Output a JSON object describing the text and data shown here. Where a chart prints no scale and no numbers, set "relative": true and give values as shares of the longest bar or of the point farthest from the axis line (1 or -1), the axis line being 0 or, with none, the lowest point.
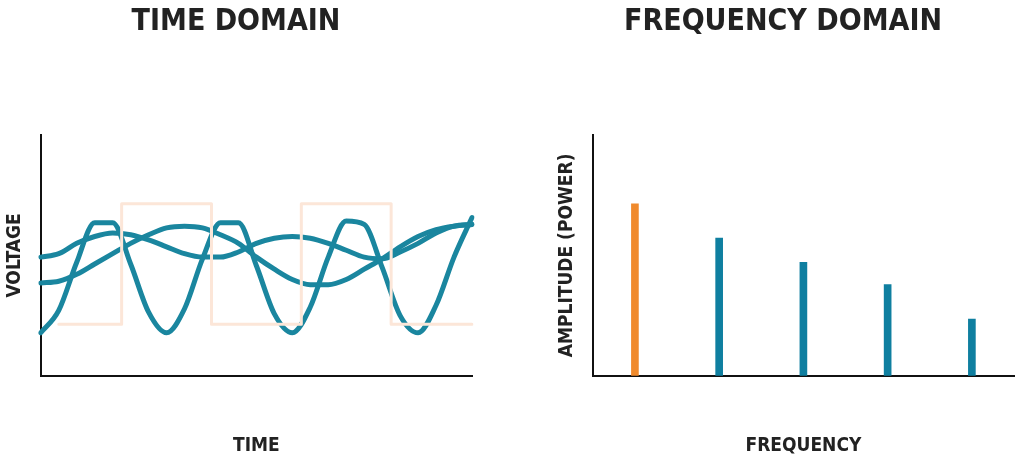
{
  "chart_data": [
    {
      "type": "line",
      "title": "TIME DOMAIN",
      "xlabel": "TIME",
      "ylabel": "VOLTAGE",
      "relative": true,
      "legend": false,
      "grid": false,
      "marker": "none",
      "categories": [
        null,
        null,
        null,
        null,
        null,
        null,
        null,
        null,
        null,
        null,
        null,
        null,
        null,
        null,
        null,
        null,
        null,
        null,
        null,
        null,
        null,
        null,
        null,
        null,
        null
      ],
      "series": [
        {
          "type": "step",
          "color": "#fce6d8",
          "values": [
            null,
            0.3,
            0.3,
            0.3,
            0.3,
            1,
            1,
            1,
            1,
            1,
            0.3,
            0.3,
            0.3,
            0.3,
            0.3,
            1,
            1,
            1,
            1,
            1,
            0.3,
            0.3,
            0.3,
            0.3,
            0.3
          ]
        },
        {
          "color": "#1a869f",
          "values": [
            0.25,
            0.38,
            0.66,
            0.89,
            0.89,
            0.65,
            0.37,
            0.25,
            0.39,
            0.68,
            0.89,
            0.89,
            0.64,
            0.36,
            0.25,
            0.4,
            0.69,
            0.9,
            0.88,
            0.63,
            0.35,
            0.25,
            0.41,
            0.69,
            0.92
          ]
        },
        {
          "color": "#1a869f",
          "values": [
            0.69,
            0.71,
            0.77,
            0.81,
            0.83,
            0.82,
            0.79,
            0.75,
            0.71,
            0.69,
            0.69,
            0.72,
            0.77,
            0.8,
            0.81,
            0.8,
            0.77,
            0.73,
            0.69,
            0.68,
            0.72,
            0.77,
            0.83,
            0.87,
            0.88
          ]
        },
        {
          "color": "#1a869f",
          "values": [
            0.54,
            0.55,
            0.59,
            0.65,
            0.71,
            0.77,
            0.82,
            0.86,
            0.87,
            0.86,
            0.82,
            0.77,
            0.69,
            0.62,
            0.56,
            0.53,
            0.53,
            0.56,
            0.62,
            0.68,
            0.75,
            0.81,
            0.85,
            0.87,
            0.88
          ]
        }
      ]
    },
    {
      "type": "bar",
      "title": "FREQUENCY DOMAIN",
      "xlabel": "FREQUENCY",
      "ylabel": "AMPLITUDE (POWER)",
      "relative": true,
      "legend": false,
      "grid": false,
      "categories": [
        null,
        null,
        null,
        null,
        null
      ],
      "values": [
        1,
        0.8,
        0.66,
        0.53,
        0.33
      ],
      "colors": [
        "#f08a2c",
        "#0f7fa0",
        "#0f7fa0",
        "#0f7fa0",
        "#0f7fa0"
      ]
    }
  ]
}
